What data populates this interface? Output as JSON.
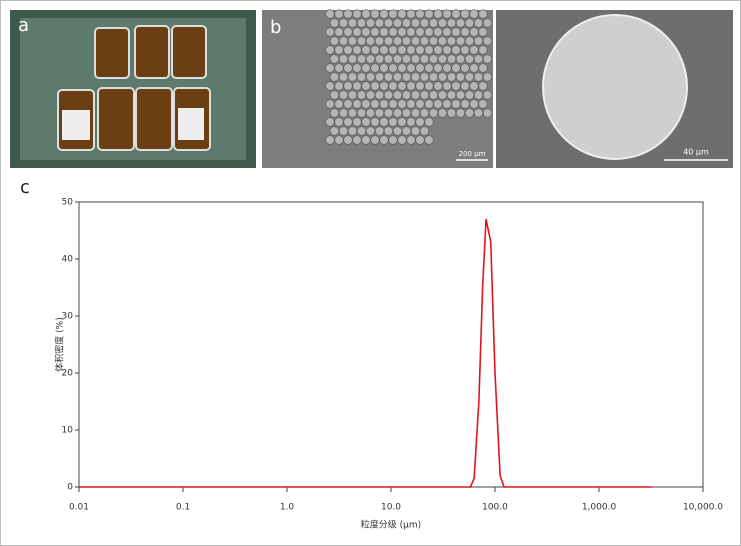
{
  "panels": {
    "a": {
      "label": "a"
    },
    "b": {
      "label": "b",
      "scale_left": "200 μm",
      "scale_right": "40 μm"
    }
  },
  "chart_data": {
    "type": "line",
    "panel_label": "c",
    "x_label": "粒度分级 (μm)",
    "y_label": "体积密度 (%)",
    "x": [
      0.01,
      58,
      63,
      70,
      76,
      82,
      91,
      100,
      112,
      122,
      3200
    ],
    "series": [
      {
        "name": "体积密度",
        "color": "#e0141e",
        "values": [
          0,
          0,
          1.5,
          15,
          35,
          47,
          43,
          20,
          2,
          0,
          0
        ]
      }
    ],
    "xlim": [
      0.01,
      10000
    ],
    "xlog": true,
    "xticks": [
      0.01,
      0.1,
      {
        "value": 1,
        "label": "1.0"
      },
      {
        "value": 10,
        "label": "10.0"
      },
      {
        "value": 100,
        "label": "100.0"
      },
      {
        "value": 1000,
        "label": "1,000.0"
      },
      {
        "value": 10000,
        "label": "10,000.0"
      }
    ],
    "ylim": [
      0,
      50
    ],
    "yticks": [
      0,
      10,
      20,
      30,
      40,
      50
    ]
  }
}
